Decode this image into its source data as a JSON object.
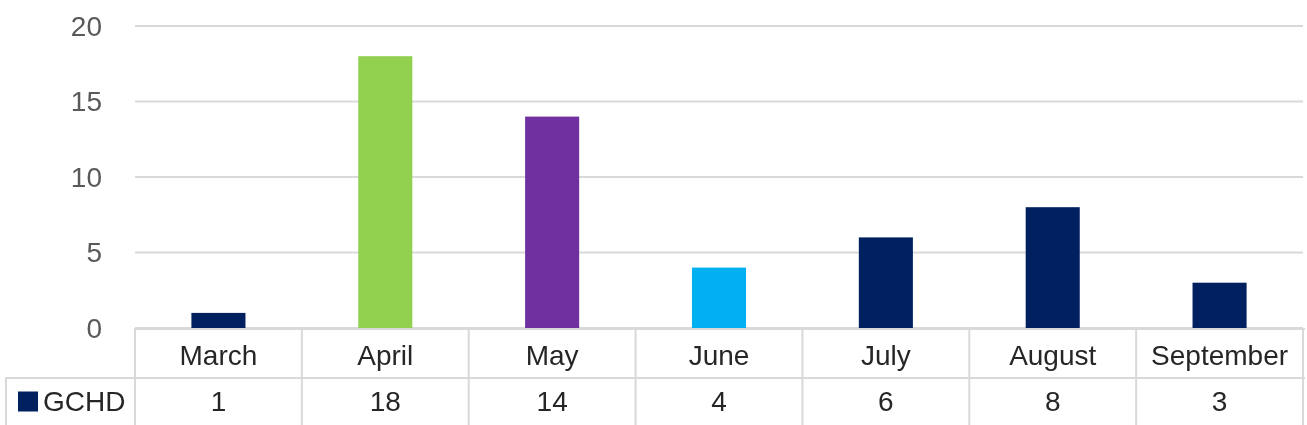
{
  "chart_data": {
    "type": "bar",
    "categories": [
      "March",
      "April",
      "May",
      "June",
      "July",
      "August",
      "September"
    ],
    "series": [
      {
        "name": "GCHD",
        "color": "#002060",
        "colors": [
          "#002060",
          "#92d050",
          "#7030a0",
          "#00b0f0",
          "#002060",
          "#002060",
          "#002060"
        ],
        "values": [
          1,
          18,
          14,
          4,
          6,
          8,
          3
        ]
      }
    ],
    "ylim": [
      0,
      20
    ],
    "yticks": [
      0,
      5,
      10,
      15,
      20
    ],
    "grid": "y",
    "legend": "bottom left",
    "data_labels": true
  }
}
